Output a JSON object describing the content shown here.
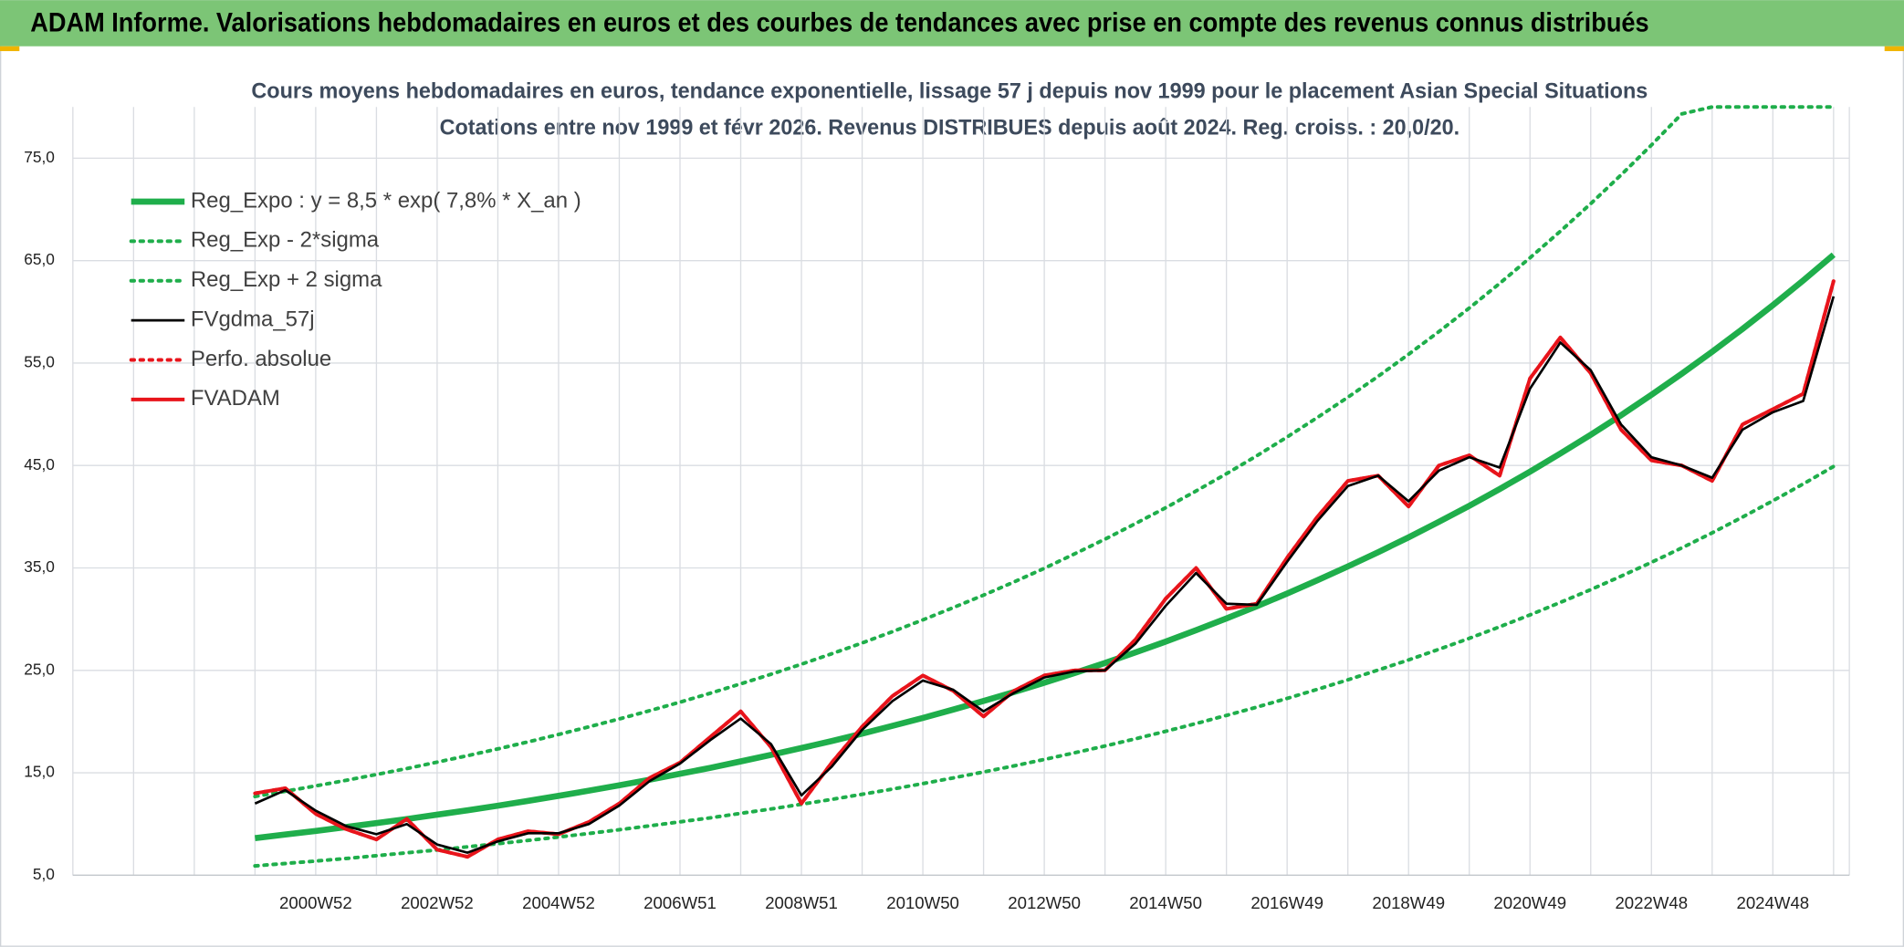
{
  "header": {
    "title": "ADAM Informe. Valorisations hebdomadaires en euros et des courbes de tendances avec prise en compte des revenus connus distribués"
  },
  "chart_data": {
    "type": "line",
    "title": "Cours moyens hebdomadaires en euros, tendance exponentielle, lissage 57 j depuis nov 1999 pour le placement Asian Special Situations",
    "subtitle": "Cotations entre nov 1999 et févr 2026. Revenus DISTRIBUES depuis août 2024. Reg. croiss. : 20,0/20.",
    "categories": [
      null,
      null,
      null,
      null,
      null,
      null,
      null,
      null,
      "2000W52",
      null,
      null,
      null,
      "2002W52",
      null,
      null,
      null,
      "2004W52",
      null,
      null,
      null,
      "2006W51",
      null,
      null,
      null,
      "2008W51",
      null,
      null,
      null,
      "2010W50",
      null,
      null,
      null,
      "2012W50",
      null,
      null,
      null,
      "2014W50",
      null,
      null,
      null,
      "2016W49",
      null,
      null,
      null,
      "2018W49",
      null,
      null,
      null,
      "2020W49",
      null,
      null,
      null,
      "2022W48",
      null,
      null,
      null,
      "2024W48",
      null,
      null
    ],
    "ylim": [
      5,
      80
    ],
    "yticks": [
      {
        "value": 5,
        "label": "5,0"
      },
      {
        "value": 15,
        "label": "15,0"
      },
      {
        "value": 25,
        "label": "25,0"
      },
      {
        "value": 35,
        "label": "35,0"
      },
      {
        "value": 45,
        "label": "45,0"
      },
      {
        "value": 55,
        "label": "55,0"
      },
      {
        "value": 65,
        "label": "65,0"
      },
      {
        "value": 75,
        "label": "75,0"
      }
    ],
    "grid": true,
    "legend": "top-left",
    "series": [
      {
        "name": "Reg_Expo : y = 8,5 * exp( 7,8% *  X_an )",
        "color": "#1fae4b",
        "line_style": "thick",
        "values": [
          null,
          null,
          null,
          null,
          null,
          null,
          8.63,
          8.98,
          9.33,
          9.7,
          10.09,
          10.49,
          10.91,
          11.34,
          11.79,
          12.26,
          12.75,
          13.26,
          13.78,
          14.33,
          14.9,
          15.49,
          16.11,
          16.75,
          17.42,
          18.11,
          18.83,
          19.58,
          20.36,
          21.17,
          22.01,
          22.88,
          23.79,
          24.74,
          25.72,
          26.75,
          27.81,
          28.92,
          30.07,
          31.26,
          32.5,
          33.8,
          35.14,
          36.54,
          37.99,
          39.5,
          41.07,
          42.7,
          44.4,
          46.17,
          48.0,
          49.91,
          51.89,
          53.96,
          56.1,
          58.33,
          60.65,
          63.06,
          65.57
        ]
      },
      {
        "name": "Reg_Exp - 2*sigma",
        "color": "#1fae4b",
        "line_style": "dotted",
        "values": [
          null,
          null,
          null,
          null,
          null,
          null,
          5.91,
          6.15,
          6.39,
          6.64,
          6.91,
          7.19,
          7.47,
          7.77,
          8.08,
          8.4,
          8.73,
          9.08,
          9.44,
          9.82,
          10.21,
          10.61,
          11.04,
          11.47,
          11.93,
          12.41,
          12.9,
          13.41,
          13.95,
          14.5,
          15.08,
          15.67,
          16.3,
          16.95,
          17.62,
          18.32,
          19.05,
          19.81,
          20.6,
          21.41,
          22.26,
          23.15,
          24.07,
          25.03,
          26.02,
          27.06,
          28.13,
          29.25,
          30.41,
          31.63,
          32.88,
          34.19,
          35.55,
          36.96,
          38.43,
          39.96,
          41.55,
          43.2,
          44.91
        ]
      },
      {
        "name": "Reg_Exp + 2 sigma",
        "color": "#1fae4b",
        "line_style": "dotted",
        "values": [
          null,
          null,
          null,
          null,
          null,
          null,
          12.69,
          13.2,
          13.72,
          14.26,
          14.83,
          15.42,
          16.04,
          16.67,
          17.33,
          18.02,
          18.74,
          19.49,
          20.26,
          21.07,
          21.9,
          22.77,
          23.68,
          24.62,
          25.61,
          26.62,
          27.68,
          28.78,
          29.93,
          31.12,
          32.35,
          33.63,
          34.97,
          36.37,
          37.81,
          39.32,
          40.88,
          42.51,
          44.2,
          45.95,
          47.78,
          49.69,
          51.66,
          53.71,
          55.85,
          58.07,
          60.37,
          62.77,
          65.27,
          67.87,
          70.56,
          73.37,
          76.28,
          79.32,
          80,
          80,
          80,
          80,
          80
        ]
      },
      {
        "name": "FVgdma_57j",
        "color": "#000000",
        "line_style": "thin",
        "values": [
          null,
          null,
          null,
          null,
          null,
          null,
          12,
          13.3,
          11.3,
          9.8,
          9.0,
          10.0,
          8.0,
          7.2,
          8.3,
          9.1,
          9.1,
          10.0,
          11.8,
          14.2,
          15.9,
          18.2,
          20.3,
          17.8,
          12.8,
          15.6,
          19.2,
          22.0,
          24.0,
          23.1,
          21.0,
          22.8,
          24.3,
          24.9,
          25.0,
          27.6,
          31.3,
          34.5,
          31.5,
          31.4,
          35.6,
          39.6,
          43.0,
          44.0,
          41.5,
          44.5,
          45.8,
          44.8,
          52.5,
          57.0,
          54.3,
          49.0,
          45.8,
          45.0,
          43.8,
          48.5,
          50.2,
          51.3,
          61.5
        ]
      },
      {
        "name": "Perfo. absolue",
        "color": "#e8141b",
        "line_style": "dotted",
        "values": [
          null,
          null,
          null,
          null,
          null,
          null,
          13,
          13.5,
          11,
          9.5,
          8.5,
          10.5,
          7.5,
          6.8,
          8.5,
          9.3,
          9.0,
          10.2,
          12.0,
          14.5,
          16.0,
          18.5,
          21.0,
          17.5,
          12.0,
          16.0,
          19.5,
          22.5,
          24.5,
          23.0,
          20.5,
          23.0,
          24.5,
          25.0,
          25.0,
          28.0,
          32.0,
          35.0,
          31.0,
          31.5,
          36.0,
          40.0,
          43.5,
          44.0,
          41.0,
          45.0,
          46.0,
          44.0,
          53.5,
          57.5,
          54.0,
          48.5,
          45.5,
          45.0,
          43.5,
          49.0,
          50.5,
          52.0,
          63.0
        ]
      },
      {
        "name": "FVADAM",
        "color": "#e8141b",
        "line_style": "medium",
        "values": [
          null,
          null,
          null,
          null,
          null,
          null,
          13,
          13.5,
          11,
          9.5,
          8.5,
          10.5,
          7.5,
          6.8,
          8.5,
          9.3,
          9.0,
          10.2,
          12.0,
          14.5,
          16.0,
          18.5,
          21.0,
          17.5,
          12.0,
          16.0,
          19.5,
          22.5,
          24.5,
          23.0,
          20.5,
          23.0,
          24.5,
          25.0,
          25.0,
          28.0,
          32.0,
          35.0,
          31.0,
          31.5,
          36.0,
          40.0,
          43.5,
          44.0,
          41.0,
          45.0,
          46.0,
          44.0,
          53.5,
          57.5,
          54.0,
          48.5,
          45.5,
          45.0,
          43.5,
          49.0,
          50.5,
          52.0,
          63.0
        ]
      }
    ]
  }
}
